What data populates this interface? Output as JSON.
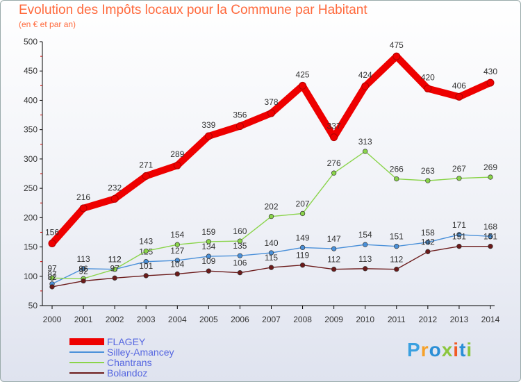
{
  "title": "Evolution des Impôts locaux pour la Commune par Habitant",
  "subtitle": "(en € et par an)",
  "brand": {
    "text": "Proxiti",
    "colors": [
      "#3aa0e0",
      "#f6a12a",
      "#2b8fd6",
      "#8cc63f",
      "#f15a24",
      "#2b8fd6",
      "#8cc63f"
    ]
  },
  "chart_data": {
    "type": "line",
    "x": [
      "2000",
      "2001",
      "2002",
      "2003",
      "2004",
      "2005",
      "2006",
      "2007",
      "2008",
      "2009",
      "2010",
      "2011",
      "2012",
      "2013",
      "2014"
    ],
    "ylim": [
      50,
      500
    ],
    "yticks": [
      50,
      100,
      150,
      200,
      250,
      300,
      350,
      400,
      450,
      500
    ],
    "grid": false,
    "legend_position": "bottom-left",
    "series": [
      {
        "name": "FLAGEY",
        "color": "#ee0000",
        "values": [
          156,
          216,
          232,
          271,
          289,
          339,
          356,
          378,
          425,
          337,
          424,
          475,
          420,
          406,
          430
        ]
      },
      {
        "name": "Silley-Amancey",
        "color": "#4a90d9",
        "values": [
          87,
          113,
          112,
          125,
          127,
          134,
          135,
          140,
          149,
          147,
          154,
          151,
          158,
          171,
          168
        ]
      },
      {
        "name": "Chantrans",
        "color": "#8ad44a",
        "values": [
          97,
          96,
          112,
          143,
          154,
          159,
          160,
          202,
          207,
          276,
          313,
          266,
          263,
          267,
          269
        ]
      },
      {
        "name": "Bolandoz",
        "color": "#6b1a1a",
        "values": [
          82,
          92,
          97,
          101,
          104,
          109,
          106,
          115,
          119,
          112,
          113,
          112,
          142,
          151,
          151
        ]
      }
    ]
  }
}
